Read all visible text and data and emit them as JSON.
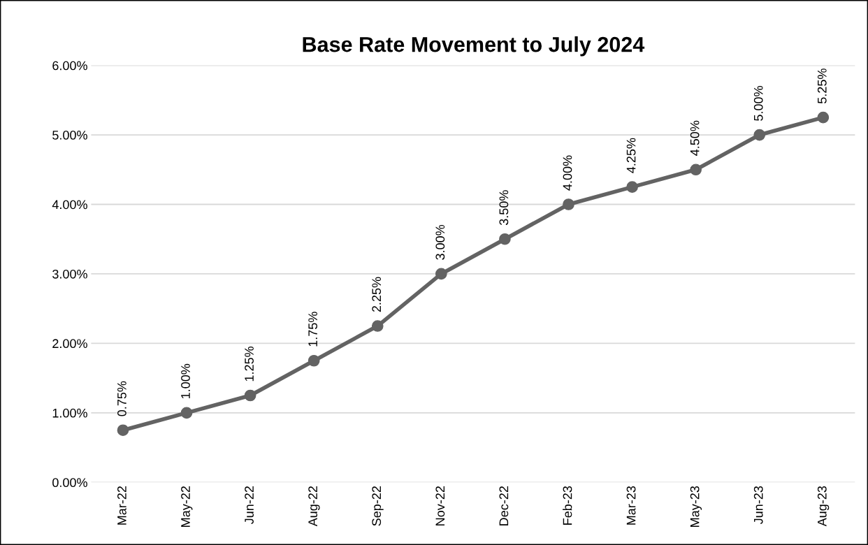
{
  "chart_data": {
    "type": "line",
    "title": "Base Rate Movement to July 2024",
    "categories": [
      "Mar-22",
      "May-22",
      "Jun-22",
      "Aug-22",
      "Sep-22",
      "Nov-22",
      "Dec-22",
      "Feb-23",
      "Mar-23",
      "May-23",
      "Jun-23",
      "Aug-23"
    ],
    "series": [
      {
        "color": "#636363",
        "values": [
          0.75,
          1.0,
          1.25,
          1.75,
          2.25,
          3.0,
          3.5,
          4.0,
          4.25,
          4.5,
          5.0,
          5.25
        ],
        "value_labels": [
          "0.75%",
          "1.00%",
          "1.25%",
          "1.75%",
          "2.25%",
          "3.00%",
          "3.50%",
          "4.00%",
          "4.25%",
          "4.50%",
          "5.00%",
          "5.25%"
        ]
      }
    ],
    "ylim": [
      0,
      6
    ],
    "yticks": [
      {
        "value": 0,
        "label": "0.00%"
      },
      {
        "value": 1,
        "label": "1.00%"
      },
      {
        "value": 2,
        "label": "2.00%"
      },
      {
        "value": 3,
        "label": "3.00%"
      },
      {
        "value": 4,
        "label": "4.00%"
      },
      {
        "value": 5,
        "label": "5.00%"
      },
      {
        "value": 6,
        "label": "6.00%"
      }
    ],
    "grid": "y",
    "marker": "circle",
    "line_style": "solid"
  }
}
